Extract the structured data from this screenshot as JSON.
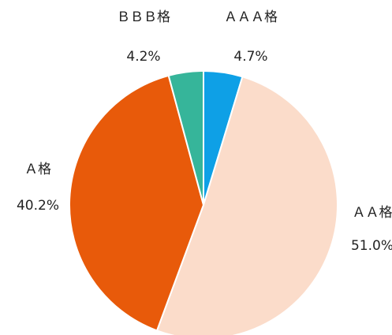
{
  "chart_data": {
    "type": "pie",
    "categories": [
      "ＡＡＡ格",
      "ＡＡ格",
      "Ａ格",
      "ＢＢＢ格"
    ],
    "values": [
      4.7,
      51.0,
      40.2,
      4.2
    ],
    "value_labels": [
      "4.7%",
      "51.0%",
      "40.2%",
      "4.2%"
    ],
    "colors": [
      "#0ea0e6",
      "#fbdcca",
      "#e85a0a",
      "#36b59a"
    ]
  }
}
